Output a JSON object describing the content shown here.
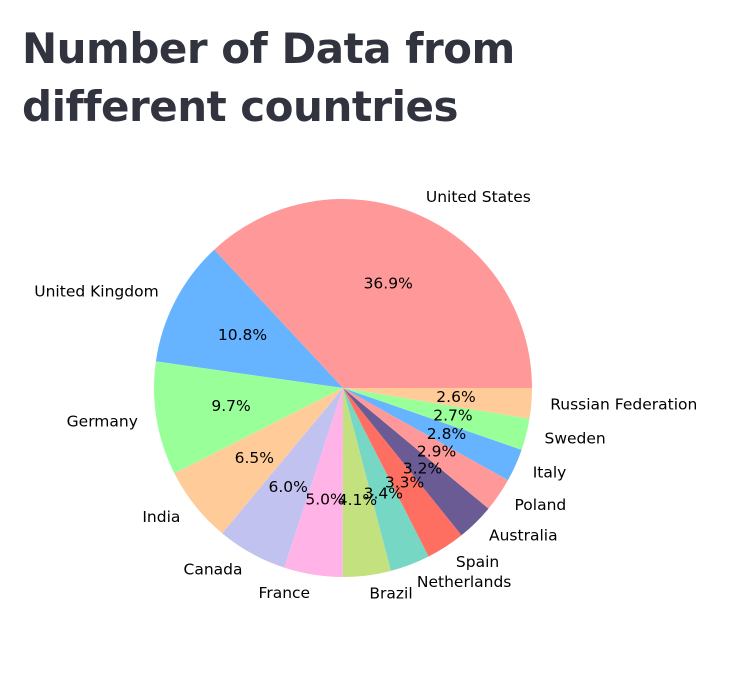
{
  "title": "Number of Data from different countries",
  "chart_data": {
    "type": "pie",
    "title": "Number of Data from different countries",
    "start_angle_deg": 0,
    "direction": "counterclockwise",
    "categories": [
      "United States",
      "United Kingdom",
      "Germany",
      "India",
      "Canada",
      "France",
      "Brazil",
      "Netherlands",
      "Spain",
      "Australia",
      "Poland",
      "Italy",
      "Sweden",
      "Russian Federation"
    ],
    "values": [
      36.9,
      10.8,
      9.7,
      6.5,
      6.0,
      5.0,
      4.1,
      3.4,
      3.3,
      3.2,
      2.9,
      2.8,
      2.7,
      2.6
    ],
    "value_labels": [
      "36.9%",
      "10.8%",
      "9.7%",
      "6.5%",
      "6.0%",
      "5.0%",
      "4.1%",
      "3.4%",
      "3.3%",
      "3.2%",
      "2.9%",
      "2.8%",
      "2.7%",
      "2.6%"
    ],
    "colors": [
      "#ff9999",
      "#66b3ff",
      "#99ff99",
      "#ffcc99",
      "#c2c2f0",
      "#ffb3e6",
      "#c4e17f",
      "#76d7c4",
      "#ff6f61",
      "#6b5b95",
      "#ff9999",
      "#66b3ff",
      "#99ff99",
      "#ffcc99"
    ]
  }
}
